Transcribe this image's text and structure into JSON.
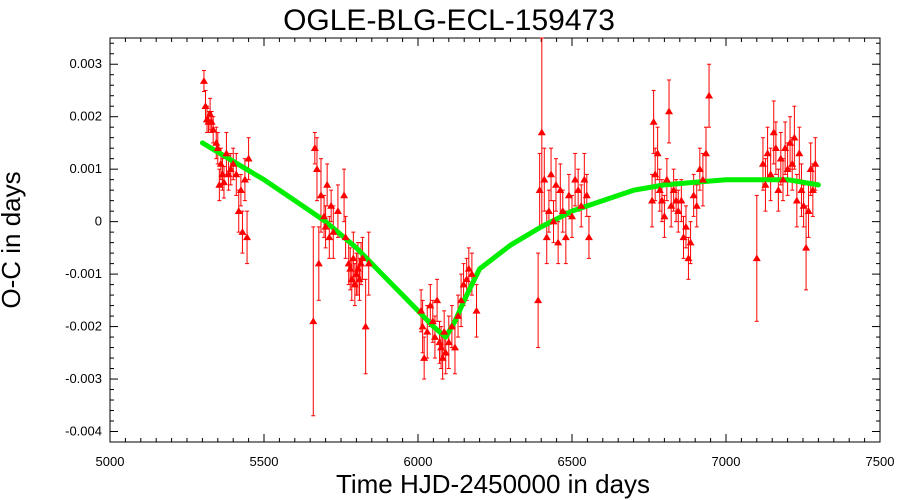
{
  "chart_data": {
    "type": "scatter",
    "title": "OGLE-BLG-ECL-159473",
    "xlabel": "Time HJD-2450000 in days",
    "ylabel": "O-C in days",
    "xlim": [
      5000,
      7500
    ],
    "ylim": [
      -0.0042,
      0.0035
    ],
    "xticks": [
      5000,
      5500,
      6000,
      6500,
      7000,
      7500
    ],
    "xtick_labels": [
      "5000",
      "5500",
      "6000",
      "6500",
      "7000",
      "7500"
    ],
    "yticks": [
      0.003,
      0.002,
      0.001,
      0,
      -0.001,
      -0.002,
      -0.003,
      -0.004
    ],
    "ytick_labels": [
      "0.003",
      "0.002",
      "0.001",
      "0",
      "-0.001",
      "-0.002",
      "-0.003",
      "-0.004"
    ],
    "grid": false,
    "colors": {
      "points": "#ff0000",
      "fit": "#00ee00"
    },
    "series": [
      {
        "kind": "points_with_errorbars",
        "points": [
          {
            "x": 5305,
            "y": 0.00268,
            "err": 0.0002
          },
          {
            "x": 5310,
            "y": 0.0022,
            "err": 0.0003
          },
          {
            "x": 5315,
            "y": 0.00195,
            "err": 0.00025
          },
          {
            "x": 5320,
            "y": 0.0019,
            "err": 0.0002
          },
          {
            "x": 5325,
            "y": 0.00205,
            "err": 0.0003
          },
          {
            "x": 5330,
            "y": 0.0019,
            "err": 0.0002
          },
          {
            "x": 5335,
            "y": 0.00175,
            "err": 0.00025
          },
          {
            "x": 5345,
            "y": 0.0015,
            "err": 0.0003
          },
          {
            "x": 5350,
            "y": 0.0014,
            "err": 0.0003
          },
          {
            "x": 5355,
            "y": 0.0007,
            "err": 0.0003
          },
          {
            "x": 5360,
            "y": 0.0011,
            "err": 0.0003
          },
          {
            "x": 5365,
            "y": 0.0009,
            "err": 0.0003
          },
          {
            "x": 5370,
            "y": 0.00075,
            "err": 0.0003
          },
          {
            "x": 5378,
            "y": 0.0013,
            "err": 0.0004
          },
          {
            "x": 5385,
            "y": 0.0009,
            "err": 0.0003
          },
          {
            "x": 5392,
            "y": 0.001,
            "err": 0.0003
          },
          {
            "x": 5400,
            "y": 0.0011,
            "err": 0.0003
          },
          {
            "x": 5410,
            "y": 0.0009,
            "err": 0.0004
          },
          {
            "x": 5418,
            "y": 0.0002,
            "err": 0.0004
          },
          {
            "x": 5425,
            "y": 0.0006,
            "err": 0.0003
          },
          {
            "x": 5430,
            "y": -0.0002,
            "err": 0.0004
          },
          {
            "x": 5438,
            "y": 0.0008,
            "err": 0.0004
          },
          {
            "x": 5445,
            "y": -0.0003,
            "err": 0.0005
          },
          {
            "x": 5450,
            "y": 0.0012,
            "err": 0.0004
          },
          {
            "x": 5660,
            "y": -0.0019,
            "err": 0.0018
          },
          {
            "x": 5665,
            "y": 0.0014,
            "err": 0.0003
          },
          {
            "x": 5672,
            "y": 0.001,
            "err": 0.0006
          },
          {
            "x": 5678,
            "y": -0.0008,
            "err": 0.0007
          },
          {
            "x": 5685,
            "y": 0.0005,
            "err": 0.0007
          },
          {
            "x": 5695,
            "y": 0.0001,
            "err": 0.0004
          },
          {
            "x": 5700,
            "y": -0.0001,
            "err": 0.0004
          },
          {
            "x": 5705,
            "y": 0.0007,
            "err": 0.0004
          },
          {
            "x": 5712,
            "y": -0.0003,
            "err": 0.0004
          },
          {
            "x": 5718,
            "y": 0.0003,
            "err": 0.0003
          },
          {
            "x": 5725,
            "y": -0.0002,
            "err": 0.0005
          },
          {
            "x": 5740,
            "y": 0.0002,
            "err": 0.0005
          },
          {
            "x": 5760,
            "y": 0.0005,
            "err": 0.0005
          },
          {
            "x": 5765,
            "y": -0.0003,
            "err": 0.0004
          },
          {
            "x": 5775,
            "y": -0.0008,
            "err": 0.0004
          },
          {
            "x": 5780,
            "y": -0.0009,
            "err": 0.0004
          },
          {
            "x": 5785,
            "y": -0.0011,
            "err": 0.0004
          },
          {
            "x": 5790,
            "y": -0.0007,
            "err": 0.0005
          },
          {
            "x": 5795,
            "y": -0.0012,
            "err": 0.0004
          },
          {
            "x": 5800,
            "y": -0.001,
            "err": 0.0004
          },
          {
            "x": 5805,
            "y": -0.0009,
            "err": 0.0005
          },
          {
            "x": 5810,
            "y": -0.0011,
            "err": 0.0004
          },
          {
            "x": 5815,
            "y": -0.0008,
            "err": 0.0004
          },
          {
            "x": 5820,
            "y": -0.0007,
            "err": 0.0004
          },
          {
            "x": 5830,
            "y": -0.002,
            "err": 0.0009
          },
          {
            "x": 5840,
            "y": -0.0008,
            "err": 0.0006
          },
          {
            "x": 6010,
            "y": -0.0017,
            "err": 0.0004
          },
          {
            "x": 6015,
            "y": -0.002,
            "err": 0.0005
          },
          {
            "x": 6020,
            "y": -0.0026,
            "err": 0.0004
          },
          {
            "x": 6030,
            "y": -0.0021,
            "err": 0.0005
          },
          {
            "x": 6040,
            "y": -0.0016,
            "err": 0.0004
          },
          {
            "x": 6048,
            "y": -0.0019,
            "err": 0.0004
          },
          {
            "x": 6055,
            "y": -0.0022,
            "err": 0.0004
          },
          {
            "x": 6062,
            "y": -0.0015,
            "err": 0.0004
          },
          {
            "x": 6070,
            "y": -0.0023,
            "err": 0.0004
          },
          {
            "x": 6075,
            "y": -0.0024,
            "err": 0.0004
          },
          {
            "x": 6080,
            "y": -0.0026,
            "err": 0.0004
          },
          {
            "x": 6085,
            "y": -0.0021,
            "err": 0.0004
          },
          {
            "x": 6090,
            "y": -0.0025,
            "err": 0.0004
          },
          {
            "x": 6100,
            "y": -0.0023,
            "err": 0.0005
          },
          {
            "x": 6110,
            "y": -0.002,
            "err": 0.0004
          },
          {
            "x": 6120,
            "y": -0.0024,
            "err": 0.0005
          },
          {
            "x": 6130,
            "y": -0.0018,
            "err": 0.0004
          },
          {
            "x": 6140,
            "y": -0.0015,
            "err": 0.0005
          },
          {
            "x": 6148,
            "y": -0.0012,
            "err": 0.0004
          },
          {
            "x": 6158,
            "y": -0.0011,
            "err": 0.0004
          },
          {
            "x": 6165,
            "y": -0.0009,
            "err": 0.0004
          },
          {
            "x": 6175,
            "y": -0.001,
            "err": 0.0004
          },
          {
            "x": 6190,
            "y": -0.0017,
            "err": 0.0005
          },
          {
            "x": 6390,
            "y": -0.0015,
            "err": 0.0009
          },
          {
            "x": 6395,
            "y": 0.0006,
            "err": 0.0007
          },
          {
            "x": 6402,
            "y": 0.0017,
            "err": 0.0018
          },
          {
            "x": 6410,
            "y": 0.0008,
            "err": 0.0006
          },
          {
            "x": 6418,
            "y": -0.0003,
            "err": 0.0005
          },
          {
            "x": 6425,
            "y": 0.0002,
            "err": 0.0004
          },
          {
            "x": 6432,
            "y": 0.0009,
            "err": 0.0005
          },
          {
            "x": 6440,
            "y": 0.0,
            "err": 0.0004
          },
          {
            "x": 6448,
            "y": 0.0007,
            "err": 0.0005
          },
          {
            "x": 6455,
            "y": -0.0004,
            "err": 0.0004
          },
          {
            "x": 6462,
            "y": 0.0006,
            "err": 0.0005
          },
          {
            "x": 6470,
            "y": 0.0002,
            "err": 0.0004
          },
          {
            "x": 6480,
            "y": -0.0003,
            "err": 0.0005
          },
          {
            "x": 6490,
            "y": 0.0005,
            "err": 0.0004
          },
          {
            "x": 6500,
            "y": 0.0001,
            "err": 0.0004
          },
          {
            "x": 6510,
            "y": 0.0008,
            "err": 0.0005
          },
          {
            "x": 6520,
            "y": 0.0006,
            "err": 0.0004
          },
          {
            "x": 6530,
            "y": 0.0003,
            "err": 0.0004
          },
          {
            "x": 6540,
            "y": 0.0008,
            "err": 0.0005
          },
          {
            "x": 6548,
            "y": 0.0005,
            "err": 0.0004
          },
          {
            "x": 6555,
            "y": -0.0003,
            "err": 0.0004
          },
          {
            "x": 6760,
            "y": 0.0004,
            "err": 0.0005
          },
          {
            "x": 6765,
            "y": 0.0019,
            "err": 0.0006
          },
          {
            "x": 6770,
            "y": 0.0009,
            "err": 0.0005
          },
          {
            "x": 6778,
            "y": 0.0013,
            "err": 0.0005
          },
          {
            "x": 6785,
            "y": 0.0006,
            "err": 0.0004
          },
          {
            "x": 6792,
            "y": 0.0004,
            "err": 0.0004
          },
          {
            "x": 6800,
            "y": 0.0001,
            "err": 0.0004
          },
          {
            "x": 6808,
            "y": 0.0008,
            "err": 0.0004
          },
          {
            "x": 6815,
            "y": 0.0021,
            "err": 0.0006
          },
          {
            "x": 6822,
            "y": 0.0003,
            "err": 0.0004
          },
          {
            "x": 6830,
            "y": 0.0006,
            "err": 0.0004
          },
          {
            "x": 6838,
            "y": 0.0004,
            "err": 0.0004
          },
          {
            "x": 6845,
            "y": 0.0002,
            "err": 0.0004
          },
          {
            "x": 6855,
            "y": 0.0004,
            "err": 0.0004
          },
          {
            "x": 6862,
            "y": -0.0003,
            "err": 0.0004
          },
          {
            "x": 6870,
            "y": -0.0001,
            "err": 0.0004
          },
          {
            "x": 6878,
            "y": -0.0007,
            "err": 0.0004
          },
          {
            "x": 6885,
            "y": -0.0004,
            "err": 0.0004
          },
          {
            "x": 6895,
            "y": 0.0005,
            "err": 0.0004
          },
          {
            "x": 6905,
            "y": 0.0003,
            "err": 0.0004
          },
          {
            "x": 6915,
            "y": 0.001,
            "err": 0.0004
          },
          {
            "x": 6925,
            "y": 0.0008,
            "err": 0.0005
          },
          {
            "x": 6935,
            "y": 0.0013,
            "err": 0.0005
          },
          {
            "x": 6945,
            "y": 0.0024,
            "err": 0.0006
          },
          {
            "x": 7100,
            "y": -0.0007,
            "err": 0.0012
          },
          {
            "x": 7120,
            "y": 0.0011,
            "err": 0.0005
          },
          {
            "x": 7128,
            "y": 0.0007,
            "err": 0.0005
          },
          {
            "x": 7135,
            "y": 0.0013,
            "err": 0.0005
          },
          {
            "x": 7145,
            "y": 0.0009,
            "err": 0.0005
          },
          {
            "x": 7155,
            "y": 0.0017,
            "err": 0.0006
          },
          {
            "x": 7162,
            "y": 0.0014,
            "err": 0.0005
          },
          {
            "x": 7170,
            "y": 0.0006,
            "err": 0.0004
          },
          {
            "x": 7178,
            "y": 0.0012,
            "err": 0.0005
          },
          {
            "x": 7185,
            "y": 0.0008,
            "err": 0.0004
          },
          {
            "x": 7192,
            "y": 0.0014,
            "err": 0.0005
          },
          {
            "x": 7200,
            "y": 0.001,
            "err": 0.0005
          },
          {
            "x": 7208,
            "y": 0.0015,
            "err": 0.0005
          },
          {
            "x": 7215,
            "y": 0.0011,
            "err": 0.0005
          },
          {
            "x": 7222,
            "y": 0.0016,
            "err": 0.0006
          },
          {
            "x": 7230,
            "y": 0.0004,
            "err": 0.0005
          },
          {
            "x": 7238,
            "y": 0.0013,
            "err": 0.0005
          },
          {
            "x": 7245,
            "y": 0.0006,
            "err": 0.0005
          },
          {
            "x": 7252,
            "y": 0.0003,
            "err": 0.0004
          },
          {
            "x": 7260,
            "y": -0.0005,
            "err": 0.0008
          },
          {
            "x": 7268,
            "y": 0.0002,
            "err": 0.0005
          },
          {
            "x": 7275,
            "y": 0.001,
            "err": 0.0005
          },
          {
            "x": 7282,
            "y": 0.0006,
            "err": 0.0005
          },
          {
            "x": 7290,
            "y": 0.0011,
            "err": 0.0005
          }
        ]
      },
      {
        "kind": "fit_curve",
        "x": [
          5300,
          5400,
          5500,
          5600,
          5700,
          5800,
          5900,
          6000,
          6050,
          6090,
          6120,
          6150,
          6200,
          6300,
          6400,
          6500,
          6600,
          6700,
          6800,
          6900,
          7000,
          7100,
          7200,
          7300
        ],
        "y": [
          0.0015,
          0.00115,
          0.0008,
          0.0004,
          0.0,
          -0.0005,
          -0.0011,
          -0.0017,
          -0.002,
          -0.0022,
          -0.0019,
          -0.0015,
          -0.0009,
          -0.00045,
          -0.0001,
          0.0002,
          0.0004,
          0.0006,
          0.0007,
          0.00075,
          0.0008,
          0.0008,
          0.0008,
          0.0007
        ]
      }
    ]
  }
}
